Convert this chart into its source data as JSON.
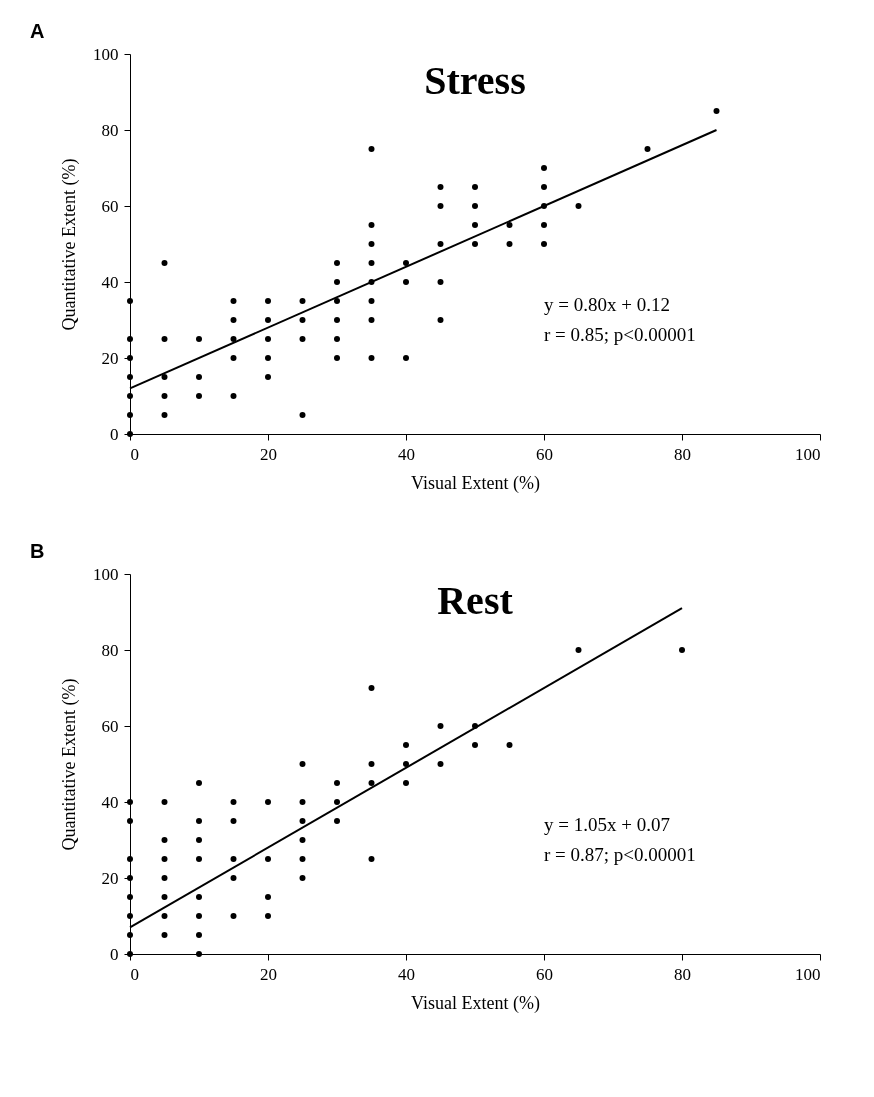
{
  "chart_data": [
    {
      "type": "scatter",
      "title": "Stress",
      "xlabel": "Visual Extent (%)",
      "ylabel": "Quantitative Extent (%)",
      "xlim": [
        0,
        100
      ],
      "ylim": [
        0,
        100
      ],
      "xticks": [
        0,
        20,
        40,
        60,
        80,
        100
      ],
      "yticks": [
        0,
        20,
        40,
        60,
        80,
        100
      ],
      "annotations": [
        "A",
        "y = 0.80x + 0.12",
        "r = 0.85; p<0.00001"
      ],
      "series": [
        {
          "marker": "circle",
          "color": "#000000",
          "x": [
            0,
            0,
            0,
            0,
            0,
            0,
            0,
            5,
            5,
            5,
            5,
            5,
            10,
            10,
            10,
            15,
            15,
            15,
            15,
            15,
            20,
            20,
            20,
            20,
            20,
            25,
            25,
            25,
            25,
            30,
            30,
            30,
            30,
            30,
            30,
            35,
            35,
            35,
            35,
            35,
            35,
            35,
            35,
            40,
            40,
            40,
            45,
            45,
            45,
            45,
            45,
            50,
            50,
            50,
            50,
            55,
            55,
            60,
            60,
            60,
            60,
            60,
            65,
            75,
            85
          ],
          "values": [
            0,
            5,
            10,
            15,
            20,
            25,
            35,
            5,
            10,
            15,
            25,
            45,
            10,
            15,
            25,
            10,
            20,
            25,
            30,
            35,
            15,
            20,
            25,
            30,
            35,
            5,
            25,
            30,
            35,
            20,
            25,
            30,
            35,
            40,
            45,
            20,
            30,
            35,
            40,
            45,
            50,
            55,
            75,
            20,
            40,
            45,
            30,
            40,
            50,
            60,
            65,
            50,
            55,
            60,
            65,
            50,
            55,
            50,
            55,
            60,
            65,
            70,
            60,
            75,
            85
          ]
        },
        {
          "type": "line",
          "color": "#000000",
          "x": [
            0,
            85
          ],
          "values": [
            12,
            80
          ]
        }
      ]
    },
    {
      "type": "scatter",
      "title": "Rest",
      "xlabel": "Visual Extent (%)",
      "ylabel": "Quantitative Extent (%)",
      "xlim": [
        0,
        100
      ],
      "ylim": [
        0,
        100
      ],
      "xticks": [
        0,
        20,
        40,
        60,
        80,
        100
      ],
      "yticks": [
        0,
        20,
        40,
        60,
        80,
        100
      ],
      "annotations": [
        "B",
        "y = 1.05x + 0.07",
        "r = 0.87;  p<0.00001"
      ],
      "series": [
        {
          "marker": "circle",
          "color": "#000000",
          "x": [
            0,
            0,
            0,
            0,
            0,
            0,
            0,
            0,
            5,
            5,
            5,
            5,
            5,
            5,
            5,
            10,
            10,
            10,
            10,
            10,
            10,
            10,
            10,
            15,
            15,
            15,
            15,
            15,
            20,
            20,
            20,
            20,
            25,
            25,
            25,
            25,
            25,
            25,
            30,
            30,
            30,
            35,
            35,
            35,
            35,
            40,
            40,
            40,
            45,
            45,
            50,
            50,
            55,
            65,
            80
          ],
          "values": [
            0,
            5,
            10,
            15,
            20,
            25,
            35,
            40,
            5,
            10,
            15,
            20,
            25,
            30,
            40,
            0,
            5,
            10,
            15,
            25,
            30,
            35,
            45,
            10,
            20,
            25,
            35,
            40,
            10,
            15,
            25,
            40,
            20,
            25,
            30,
            35,
            40,
            50,
            35,
            40,
            45,
            25,
            45,
            50,
            70,
            45,
            50,
            55,
            50,
            60,
            55,
            60,
            55,
            80,
            80
          ]
        },
        {
          "type": "line",
          "color": "#000000",
          "x": [
            0,
            80
          ],
          "values": [
            7,
            91
          ]
        }
      ]
    }
  ]
}
